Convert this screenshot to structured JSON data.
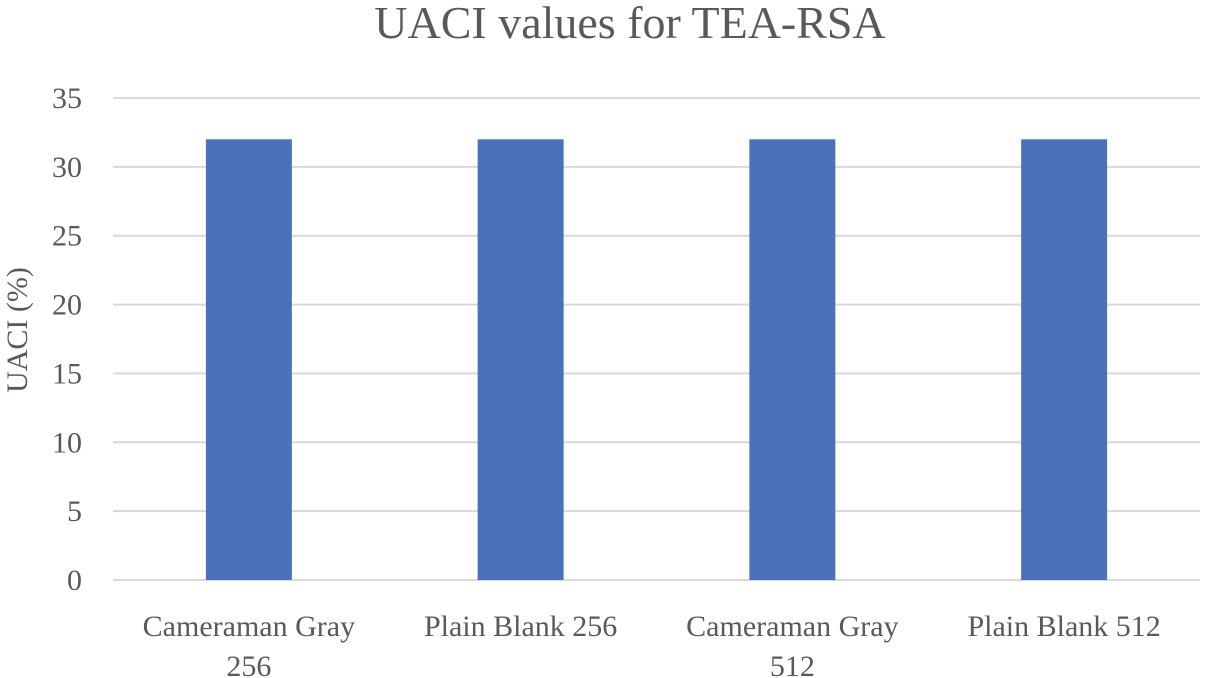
{
  "chart_data": {
    "type": "bar",
    "title": "UACI values for TEA-RSA",
    "xlabel": "",
    "ylabel": "UACI (%)",
    "categories": [
      [
        "Cameraman Gray",
        "256"
      ],
      [
        "Plain Blank 256"
      ],
      [
        "Cameraman Gray",
        "512"
      ],
      [
        "Plain Blank 512"
      ]
    ],
    "values": [
      32,
      32,
      32,
      32
    ],
    "ylim": [
      0,
      35
    ],
    "yticks": [
      0,
      5,
      10,
      15,
      20,
      25,
      30,
      35
    ],
    "grid": true,
    "legend": "none",
    "colors": {
      "bar": "#4a72b8",
      "text": "#595959",
      "grid": "#d9d9d9"
    }
  }
}
